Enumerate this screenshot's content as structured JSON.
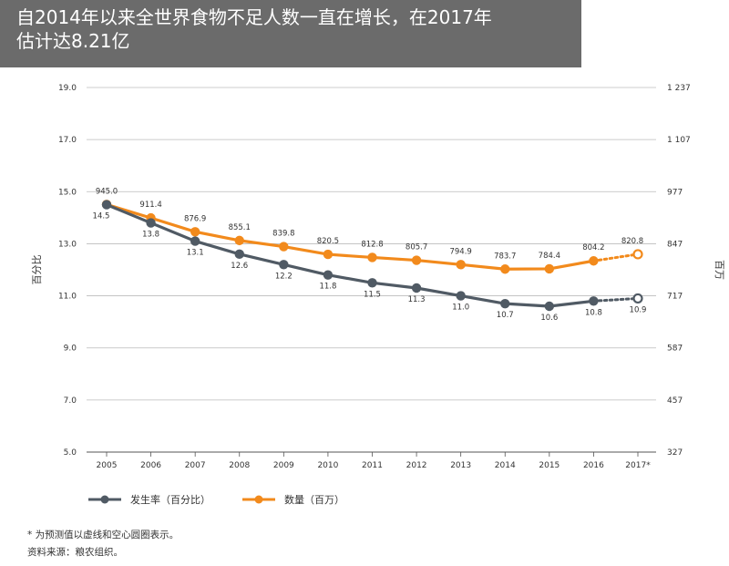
{
  "title": {
    "line1": "自2014年以来全世界食物不足人数一直在增长，在2017年",
    "line2": "估计达8.21亿"
  },
  "footnotes": {
    "note": "* 为预测值以虚线和空心圆圈表示。",
    "source": "资料来源：粮农组织。"
  },
  "colors": {
    "rate": "#505a64",
    "count": "#f28a1c",
    "title_bg": "#6b6b6b"
  },
  "chart_data": {
    "type": "line",
    "categories": [
      "2005",
      "2006",
      "2007",
      "2008",
      "2009",
      "2010",
      "2011",
      "2012",
      "2013",
      "2014",
      "2015",
      "2016",
      "2017*"
    ],
    "left_axis": {
      "label": "百分比",
      "ticks": [
        "19.0",
        "17.0",
        "15.0",
        "13.0",
        "11.0",
        "9.0",
        "7.0",
        "5.0"
      ],
      "range": [
        5,
        19
      ]
    },
    "right_axis": {
      "label": "百万",
      "ticks": [
        "1 237",
        "1 107",
        "977",
        "847",
        "717",
        "587",
        "457",
        "327"
      ],
      "range": [
        327,
        1237
      ]
    },
    "series": [
      {
        "name": "发生率（百分比）",
        "axis": "left",
        "values": [
          14.5,
          13.8,
          13.1,
          12.6,
          12.2,
          11.8,
          11.5,
          11.3,
          11.0,
          10.7,
          10.6,
          10.8,
          10.9
        ],
        "labels": [
          "14.5",
          "13.8",
          "13.1",
          "12.6",
          "12.2",
          "11.8",
          "11.5",
          "11.3",
          "11.0",
          "10.7",
          "10.6",
          "10.8",
          "10.9"
        ],
        "projected_from_index": 11
      },
      {
        "name": "数量（百万）",
        "axis": "right",
        "values": [
          945.0,
          911.4,
          876.9,
          855.1,
          839.8,
          820.5,
          812.8,
          805.7,
          794.9,
          783.7,
          784.4,
          804.2,
          820.8
        ],
        "labels": [
          "945.0",
          "911.4",
          "876.9",
          "855.1",
          "839.8",
          "820.5",
          "812.8",
          "805.7",
          "794.9",
          "783.7",
          "784.4",
          "804.2",
          "820.8"
        ],
        "projected_from_index": 11
      }
    ],
    "grid": "horizontal",
    "legend_position": "bottom-left"
  }
}
